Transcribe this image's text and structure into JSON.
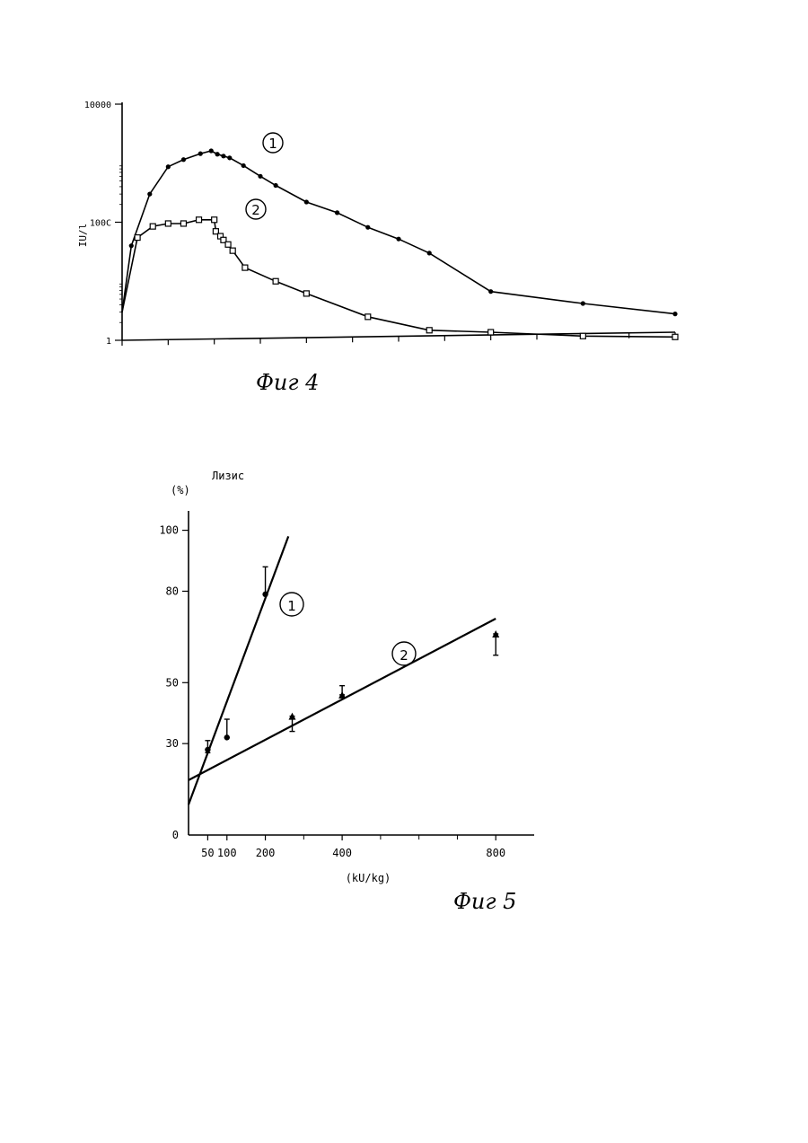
{
  "chart_data": [
    {
      "type": "line",
      "caption": "Фиг 4",
      "ylabel": "IU/l",
      "yscale": "log",
      "ylim": [
        1,
        10000
      ],
      "y_ticks": [
        1,
        100,
        10000
      ],
      "y_tick_labels": [
        "1",
        "100C",
        "10000"
      ],
      "x_ticks_count": 13,
      "series": [
        {
          "name": "1",
          "marker": "star",
          "x": [
            0,
            0.3,
            0.9,
            1.5,
            2.0,
            2.55,
            2.9,
            3.1,
            3.3,
            3.5,
            3.95,
            4.5,
            5.0,
            6.0,
            7.0,
            8.0,
            9.0,
            10.0,
            12.0,
            15.0,
            18.0
          ],
          "y": [
            3,
            40,
            300,
            870,
            1150,
            1450,
            1620,
            1420,
            1320,
            1230,
            910,
            600,
            420,
            220,
            145,
            82,
            52,
            30,
            6.7,
            4.2,
            2.8
          ]
        },
        {
          "name": "2",
          "marker": "square",
          "x": [
            0,
            0.5,
            1.0,
            1.5,
            2.0,
            2.5,
            3.0,
            3.05,
            3.2,
            3.3,
            3.45,
            3.6,
            4.0,
            5.0,
            6.0,
            8.0,
            10.0,
            12.0,
            15.0,
            18.0
          ],
          "y": [
            3,
            55,
            85,
            95,
            95,
            110,
            110,
            70,
            58,
            50,
            42,
            33,
            17,
            10,
            6.2,
            2.5,
            1.48,
            1.37,
            1.18,
            1.14
          ]
        }
      ]
    },
    {
      "type": "scatter",
      "caption": "Фиг 5",
      "title": "Лизис",
      "ylabel": "(%)",
      "xlabel": "(kU/kg)",
      "xlim": [
        0,
        900
      ],
      "ylim": [
        0,
        104
      ],
      "x_ticks": [
        50,
        100,
        200,
        400,
        800
      ],
      "y_ticks": [
        0,
        30,
        50,
        80,
        100
      ],
      "series": [
        {
          "name": "1",
          "fit_line": {
            "x": [
              0,
              260
            ],
            "y": [
              10,
              98
            ]
          },
          "points": [
            {
              "x": 50,
              "y": 28,
              "err_low": 27,
              "err_high": 31
            },
            {
              "x": 100,
              "y": 32,
              "err_low": 32,
              "err_high": 38
            },
            {
              "x": 200,
              "y": 79,
              "err_low": 79,
              "err_high": 88
            }
          ]
        },
        {
          "name": "2",
          "fit_line": {
            "x": [
              0,
              800
            ],
            "y": [
              18,
              71
            ]
          },
          "points": [
            {
              "x": 270,
              "y": 39,
              "err_low": 34,
              "err_high": 39
            },
            {
              "x": 400,
              "y": 46,
              "err_low": 46,
              "err_high": 49
            },
            {
              "x": 800,
              "y": 66,
              "err_low": 59,
              "err_high": 66
            }
          ]
        }
      ]
    }
  ]
}
